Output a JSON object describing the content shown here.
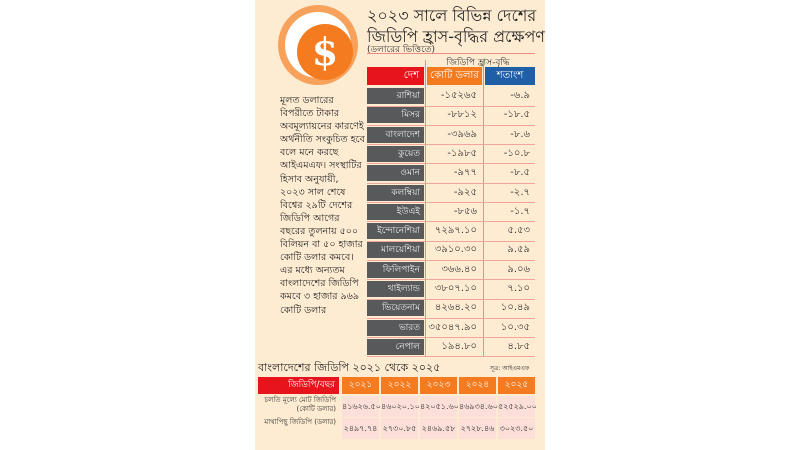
{
  "title": {
    "line1": "২০২৩ সালে বিভিন্ন দেশের",
    "line2": "জিডিপি হ্রাস-বৃদ্ধির প্রক্ষেপণ",
    "subtitle": "(ডলারের ভিত্তিতে)"
  },
  "coin_icon": "dollar-coin-icon",
  "colors": {
    "country_header": "#e8141c",
    "crore_header": "#f47b20",
    "percent_header": "#1f5fa8",
    "country_cell": "#58595b",
    "background": "#fdecd2"
  },
  "table": {
    "group_label": "জিডিপি হ্রাস-বৃদ্ধি",
    "headers": [
      "দেশ",
      "কোটি ডলার",
      "শতাংশ"
    ],
    "rows": [
      [
        "রাশিয়া",
        "-১৫২৬৫",
        "-৬.৯"
      ],
      [
        "মিসর",
        "-৮৮১২",
        "-১৮.৫"
      ],
      [
        "বাংলাদেশ",
        "-৩৯৬৯",
        "-৮.৬"
      ],
      [
        "কুয়েত",
        "-১৯৮৫",
        "-১০.৮"
      ],
      [
        "ওমান",
        "-৯৭৭",
        "-৮.৫"
      ],
      [
        "কলম্বিয়া",
        "-৯২৫",
        "-২.৭"
      ],
      [
        "ইউএই",
        "-৮৫৬",
        "-১.৭"
      ],
      [
        "ইন্দোনেশিয়া",
        "৭২৯৭.১০",
        "৫.৫৩"
      ],
      [
        "মালয়েশিয়া",
        "৩৯১০.৩০",
        "৯.৫৯"
      ],
      [
        "ফিলিপাইন",
        "৩৬৬.৪০",
        "৯.০৬"
      ],
      [
        "থাইল্যান্ড",
        "৩৮০৭.১০",
        "৭.১০"
      ],
      [
        "ভিয়েতনাম",
        "৪২৬৪.২০",
        "১০.৪৯"
      ],
      [
        "ভারত",
        "৩৫০৪৭.৯০",
        "১০.৩৫"
      ],
      [
        "নেপাল",
        "১৯৪.৮০",
        "৪.৮৫"
      ]
    ]
  },
  "note": "মূলত ডলারের বিপরীতে টাকার অবমূল্যায়নের কারণেই অর্থনীতি সংকুচিত হবে বলে মনে করছে আইএমএফ। সংস্থাটির হিসাব অনুযায়ী, ২০২৩ সাল শেষে বিশ্বের ২৯টি দেশের জিডিপি আগের বছরের তুলনায় ৫০০ বিলিয়ন বা ৫০ হাজার কোটি ডলার কমবে। এর মধ্যে অন্যতম বাংলাদেশের জিডিপি কমবে ৩ হাজার ৯৬৯ কোটি ডলার",
  "bangladesh": {
    "title": "বাংলাদেশের জিডিপি ২০২১ থেকে ২০২৫",
    "source": "সূত্র: আইএমএফ",
    "corner": "জিডিপি/বছর",
    "years": [
      "২০২১",
      "২০২২",
      "২০২৩",
      "২০২৪",
      "২০২৫"
    ],
    "rows": [
      {
        "label": "চলতি মূল্যে মোট জিডিপি (কোটি ডলার)",
        "values": [
          "৪১৬২৬.৫০",
          "৪৬০২০.১০",
          "৪২০৫১.৬০",
          "৪৬৯৩৪.৬০",
          "৫২৫২৯.০০"
        ]
      },
      {
        "label": "মাথাপিছু জিডিপি (ডলার)",
        "values": [
          "২৪৯৭.৭৪",
          "২৭৩০.৮৫",
          "২৪৬৯.৫৮",
          "২৭২৮.৪৬",
          "৩০২৩.৫০"
        ]
      }
    ]
  }
}
